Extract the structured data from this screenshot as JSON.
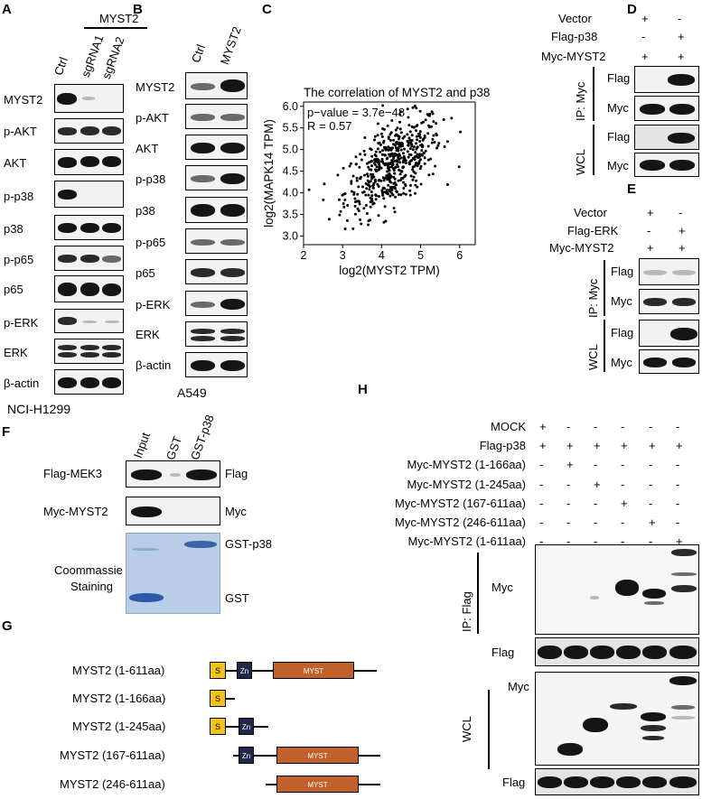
{
  "panels": {
    "A": "A",
    "B": "B",
    "C": "C",
    "D": "D",
    "E": "E",
    "F": "F",
    "G": "G",
    "H": "H"
  },
  "panel_a": {
    "group_label": "MYST2",
    "lanes": [
      "Ctrl",
      "sgRNA1",
      "sgRNA2"
    ],
    "rows": [
      "MYST2",
      "p-AKT",
      "AKT",
      "p-p38",
      "p38",
      "p-p65",
      "p65",
      "p-ERK",
      "ERK",
      "β-actin"
    ],
    "cell_line": "NCI-H1299"
  },
  "panel_b": {
    "lanes": [
      "Ctrl",
      "MYST2"
    ],
    "rows": [
      "MYST2",
      "p-AKT",
      "AKT",
      "p-p38",
      "p38",
      "p-p65",
      "p65",
      "p-ERK",
      "ERK",
      "β-actin"
    ],
    "cell_line": "A549"
  },
  "chart_data": {
    "type": "scatter",
    "title": "The correlation of MYST2 and p38",
    "xlabel": "log2(MYST2 TPM)",
    "ylabel": "log2(MAPK14 TPM)",
    "xlim": [
      2,
      6.4
    ],
    "ylim": [
      2.8,
      6.1
    ],
    "xticks": [
      "2",
      "3",
      "4",
      "5",
      "6"
    ],
    "yticks": [
      "3.0",
      "3.5",
      "4.0",
      "4.5",
      "5.0",
      "5.5",
      "6.0"
    ],
    "annotations": [
      "p−value = 3.7e−48",
      "R = 0.57"
    ],
    "trend": {
      "slope": 0.57,
      "center_x": 4.3,
      "center_y": 4.65,
      "sd_x": 0.62,
      "sd_y": 0.56,
      "n": 520
    }
  },
  "panel_d": {
    "conditions": [
      [
        "Vector",
        "+",
        "-"
      ],
      [
        "Flag-p38",
        "-",
        "+"
      ],
      [
        "Myc-MYST2",
        "+",
        "+"
      ]
    ],
    "ip_label": "IP: Myc",
    "wcl_label": "WCL",
    "rows": [
      "Flag",
      "Myc",
      "Flag",
      "Myc"
    ]
  },
  "panel_e": {
    "conditions": [
      [
        "Vector",
        "+",
        "-"
      ],
      [
        "Flag-ERK",
        "-",
        "+"
      ],
      [
        "Myc-MYST2",
        "+",
        "+"
      ]
    ],
    "ip_label": "IP: Myc",
    "wcl_label": "WCL",
    "rows": [
      "Flag",
      "Myc",
      "Flag",
      "Myc"
    ]
  },
  "panel_f": {
    "lanes": [
      "Input",
      "GST",
      "GST-p38"
    ],
    "left_rows": [
      "Flag-MEK3",
      "Myc-MYST2",
      "Coommassie",
      "Staining"
    ],
    "right_rows": [
      "Flag",
      "Myc",
      "GST-p38",
      "GST"
    ]
  },
  "panel_g": {
    "constructs": [
      "MYST2 (1-611aa)",
      "MYST2 (1-166aa)",
      "MYST2 (1-245aa)",
      "MYST2 (167-611aa)",
      "MYST2 (246-611aa)"
    ],
    "domains": {
      "s": "S",
      "zn": "Zn",
      "myst": "MYST"
    },
    "colors": {
      "s": "#f2c418",
      "zn": "#1e2a4a",
      "myst": "#c0612b"
    }
  },
  "panel_h": {
    "conditions": [
      [
        "MOCK",
        "+",
        "-",
        "-",
        "-",
        "-",
        "-"
      ],
      [
        "Flag-p38",
        "+",
        "+",
        "+",
        "+",
        "+",
        "+"
      ],
      [
        "Myc-MYST2 (1-166aa)",
        "-",
        "+",
        "-",
        "-",
        "-",
        "-"
      ],
      [
        "Myc-MYST2 (1-245aa)",
        "-",
        "-",
        "+",
        "-",
        "-",
        "-"
      ],
      [
        "Myc-MYST2 (167-611aa)",
        "-",
        "-",
        "-",
        "+",
        "-",
        "-"
      ],
      [
        "Myc-MYST2 (246-611aa)",
        "-",
        "-",
        "-",
        "-",
        "+",
        "-"
      ],
      [
        "Myc-MYST2 (1-611aa)",
        "-",
        "-",
        "-",
        "-",
        "-",
        "+"
      ]
    ],
    "ip_label": "IP: Flag",
    "wcl_label": "WCL",
    "rows": [
      "Myc",
      "Flag",
      "Myc",
      "Flag"
    ]
  }
}
